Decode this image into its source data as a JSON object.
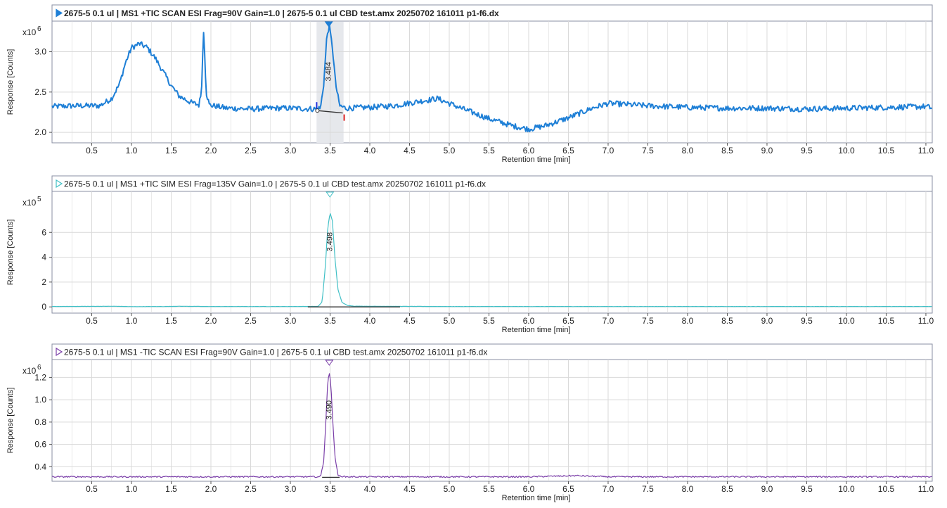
{
  "colors": {
    "tic_scan_pos": "#1e7fd6",
    "sim_pos": "#41c0c6",
    "tic_scan_neg": "#7a3ea8",
    "grid": "#d9d9d9",
    "frame": "#8a8fa3",
    "baseline": "#333333",
    "highlight": "#e6e8ec",
    "boundary_start": "#2233dd",
    "boundary_end": "#dd2222"
  },
  "chart_data": [
    {
      "type": "line",
      "title": "2675-5 0.1 ul | MS1 +TIC SCAN ESI Frag=90V Gain=1.0 | 2675-5 0.1 ul CBD test.amx 20250702 161011 p1-f6.dx",
      "title_marker": "filled-triangle-right-icon",
      "xlabel": "Retention time [min]",
      "ylabel": "Response [Counts]",
      "y_multiplier": "x10",
      "y_exponent": "6",
      "xlim": [
        0.0,
        11.08
      ],
      "ylim": [
        1.87,
        3.38
      ],
      "x_ticks": [
        0.5,
        1.0,
        1.5,
        2.0,
        2.5,
        3.0,
        3.5,
        4.0,
        4.5,
        5.0,
        5.5,
        6.0,
        6.5,
        7.0,
        7.5,
        8.0,
        8.5,
        9.0,
        9.5,
        10.0,
        10.5,
        11.0
      ],
      "x_tick_labels": [
        "0.5",
        "1.0",
        "1.5",
        "2.0",
        "2.5",
        "3.0",
        "3.5",
        "4.0",
        "4.5",
        "5.0",
        "5.5",
        "6.0",
        "6.5",
        "7.0",
        "7.5",
        "8.0",
        "8.5",
        "9.0",
        "9.5",
        "10.0",
        "10.5",
        "11.0"
      ],
      "y_ticks": [
        2.0,
        2.5,
        3.0
      ],
      "y_tick_labels": [
        "2.0",
        "2.5",
        "3.0"
      ],
      "color": "#1e7fd6",
      "filled_marker": true,
      "highlight_region": [
        3.33,
        3.67
      ],
      "peak_label": "3.484",
      "noise": 0.035,
      "baseline_segment": [
        [
          3.34,
          2.27
        ],
        [
          3.66,
          2.24
        ]
      ],
      "points": [
        [
          0.0,
          2.32
        ],
        [
          0.3,
          2.33
        ],
        [
          0.6,
          2.33
        ],
        [
          0.75,
          2.42
        ],
        [
          0.85,
          2.6
        ],
        [
          0.92,
          2.85
        ],
        [
          1.0,
          3.05
        ],
        [
          1.1,
          3.1
        ],
        [
          1.2,
          3.05
        ],
        [
          1.3,
          2.92
        ],
        [
          1.4,
          2.75
        ],
        [
          1.5,
          2.58
        ],
        [
          1.6,
          2.45
        ],
        [
          1.75,
          2.37
        ],
        [
          1.85,
          2.34
        ],
        [
          1.88,
          2.5
        ],
        [
          1.91,
          3.3
        ],
        [
          1.94,
          2.5
        ],
        [
          1.98,
          2.34
        ],
        [
          2.2,
          2.3
        ],
        [
          2.5,
          2.29
        ],
        [
          2.8,
          2.3
        ],
        [
          3.0,
          2.3
        ],
        [
          3.3,
          2.29
        ],
        [
          3.38,
          2.3
        ],
        [
          3.42,
          2.6
        ],
        [
          3.46,
          3.2
        ],
        [
          3.49,
          3.32
        ],
        [
          3.53,
          3.05
        ],
        [
          3.57,
          2.6
        ],
        [
          3.62,
          2.33
        ],
        [
          3.7,
          2.3
        ],
        [
          4.0,
          2.31
        ],
        [
          4.3,
          2.33
        ],
        [
          4.6,
          2.38
        ],
        [
          4.85,
          2.42
        ],
        [
          5.0,
          2.36
        ],
        [
          5.2,
          2.28
        ],
        [
          5.5,
          2.17
        ],
        [
          5.8,
          2.08
        ],
        [
          6.0,
          2.04
        ],
        [
          6.2,
          2.08
        ],
        [
          6.5,
          2.18
        ],
        [
          6.8,
          2.3
        ],
        [
          7.0,
          2.36
        ],
        [
          7.5,
          2.33
        ],
        [
          8.0,
          2.31
        ],
        [
          8.5,
          2.3
        ],
        [
          9.0,
          2.3
        ],
        [
          9.5,
          2.29
        ],
        [
          10.0,
          2.3
        ],
        [
          10.5,
          2.31
        ],
        [
          11.0,
          2.32
        ],
        [
          11.08,
          2.3
        ]
      ]
    },
    {
      "type": "line",
      "title": "2675-5 0.1 ul | MS1 +TIC SIM ESI Frag=135V Gain=1.0 | 2675-5 0.1 ul CBD test.amx 20250702 161011 p1-f6.dx",
      "title_marker": "hollow-triangle-right-icon",
      "xlabel": "Retention time [min]",
      "ylabel": "Response [Counts]",
      "y_multiplier": "x10",
      "y_exponent": "5",
      "xlim": [
        0.0,
        11.08
      ],
      "ylim": [
        -0.5,
        9.3
      ],
      "x_ticks": [
        0.5,
        1.0,
        1.5,
        2.0,
        2.5,
        3.0,
        3.5,
        4.0,
        4.5,
        5.0,
        5.5,
        6.0,
        6.5,
        7.0,
        7.5,
        8.0,
        8.5,
        9.0,
        9.5,
        10.0,
        10.5,
        11.0
      ],
      "x_tick_labels": [
        "0.5",
        "1.0",
        "1.5",
        "2.0",
        "2.5",
        "3.0",
        "3.5",
        "4.0",
        "4.5",
        "5.0",
        "5.5",
        "6.0",
        "6.5",
        "7.0",
        "7.5",
        "8.0",
        "8.5",
        "9.0",
        "9.5",
        "10.0",
        "10.5",
        "11.0"
      ],
      "y_ticks": [
        0,
        2,
        4,
        6
      ],
      "y_tick_labels": [
        "0",
        "2",
        "4",
        "6"
      ],
      "color": "#41c0c6",
      "filled_marker": false,
      "peak_label": "3.498",
      "noise": 0.008,
      "baseline_segment": [
        [
          3.22,
          0.0
        ],
        [
          4.38,
          0.0
        ]
      ],
      "points": [
        [
          0.0,
          0.03
        ],
        [
          0.8,
          0.05
        ],
        [
          1.0,
          0.02
        ],
        [
          1.4,
          0.03
        ],
        [
          1.6,
          0.05
        ],
        [
          2.0,
          0.03
        ],
        [
          3.0,
          0.03
        ],
        [
          3.35,
          0.04
        ],
        [
          3.4,
          0.4
        ],
        [
          3.44,
          3.2
        ],
        [
          3.47,
          6.3
        ],
        [
          3.5,
          7.6
        ],
        [
          3.53,
          6.9
        ],
        [
          3.56,
          4.0
        ],
        [
          3.6,
          1.4
        ],
        [
          3.65,
          0.35
        ],
        [
          3.72,
          0.12
        ],
        [
          3.8,
          0.06
        ],
        [
          4.0,
          0.05
        ],
        [
          5.0,
          0.03
        ],
        [
          6.0,
          0.03
        ],
        [
          7.0,
          0.03
        ],
        [
          8.0,
          0.03
        ],
        [
          9.0,
          0.03
        ],
        [
          10.0,
          0.03
        ],
        [
          11.08,
          0.03
        ]
      ]
    },
    {
      "type": "line",
      "title": "2675-5 0.1 ul | MS1 -TIC SCAN ESI Frag=90V Gain=1.0 | 2675-5 0.1 ul CBD test.amx 20250702 161011 p1-f6.dx",
      "title_marker": "hollow-triangle-right-icon",
      "xlabel": "Retention time [min]",
      "ylabel": "Response [Counts]",
      "y_multiplier": "x10",
      "y_exponent": "6",
      "xlim": [
        0.0,
        11.08
      ],
      "ylim": [
        0.27,
        1.36
      ],
      "x_ticks": [
        0.5,
        1.0,
        1.5,
        2.0,
        2.5,
        3.0,
        3.5,
        4.0,
        4.5,
        5.0,
        5.5,
        6.0,
        6.5,
        7.0,
        7.5,
        8.0,
        8.5,
        9.0,
        9.5,
        10.0,
        10.5,
        11.0
      ],
      "x_tick_labels": [
        "0.5",
        "1.0",
        "1.5",
        "2.0",
        "2.5",
        "3.0",
        "3.5",
        "4.0",
        "4.5",
        "5.0",
        "5.5",
        "6.0",
        "6.5",
        "7.0",
        "7.5",
        "8.0",
        "8.5",
        "9.0",
        "9.5",
        "10.0",
        "10.5",
        "11.0"
      ],
      "y_ticks": [
        0.4,
        0.6,
        0.8,
        1.0,
        1.2
      ],
      "y_tick_labels": [
        "0.4",
        "0.6",
        "0.8",
        "1.0",
        "1.2"
      ],
      "color": "#7a3ea8",
      "filled_marker": false,
      "peak_label": "3.490",
      "noise": 0.006,
      "baseline_segment": [
        [
          3.4,
          0.305
        ],
        [
          3.62,
          0.305
        ]
      ],
      "points": [
        [
          0.0,
          0.31
        ],
        [
          1.0,
          0.31
        ],
        [
          2.0,
          0.31
        ],
        [
          3.0,
          0.31
        ],
        [
          3.38,
          0.31
        ],
        [
          3.42,
          0.45
        ],
        [
          3.45,
          0.85
        ],
        [
          3.47,
          1.15
        ],
        [
          3.49,
          1.25
        ],
        [
          3.51,
          1.15
        ],
        [
          3.53,
          0.85
        ],
        [
          3.56,
          0.5
        ],
        [
          3.6,
          0.32
        ],
        [
          3.7,
          0.31
        ],
        [
          5.0,
          0.31
        ],
        [
          6.0,
          0.31
        ],
        [
          6.6,
          0.32
        ],
        [
          7.0,
          0.31
        ],
        [
          8.0,
          0.31
        ],
        [
          9.0,
          0.31
        ],
        [
          10.0,
          0.31
        ],
        [
          11.08,
          0.31
        ]
      ]
    }
  ]
}
